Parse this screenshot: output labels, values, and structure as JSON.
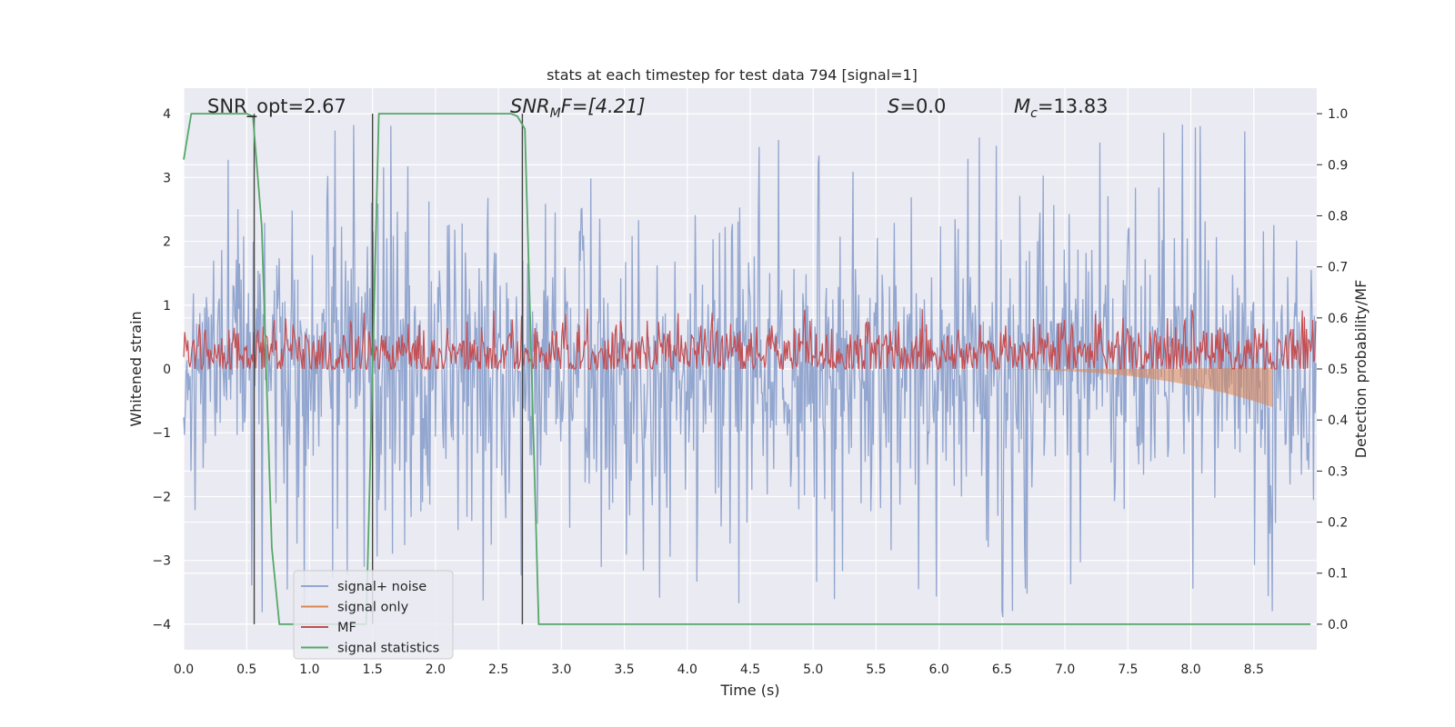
{
  "chart_data": {
    "type": "line",
    "title": "stats at each timestep for test data 794 [signal=1]",
    "xlabel": "Time (s)",
    "ylabel_left": "Whitened strain",
    "ylabel_right": "Detection probability/MF",
    "xlim": [
      0.0,
      9.0
    ],
    "ylim_left": [
      -4.4,
      4.4
    ],
    "ylim_right": [
      -0.05,
      1.05
    ],
    "xticks": [
      "0.0",
      "0.5",
      "1.0",
      "1.5",
      "2.0",
      "2.5",
      "3.0",
      "3.5",
      "4.0",
      "4.5",
      "5.0",
      "5.5",
      "6.0",
      "6.5",
      "7.0",
      "7.5",
      "8.0",
      "8.5"
    ],
    "yticks_left": [
      "4",
      "3",
      "2",
      "1",
      "0",
      "−1",
      "−2",
      "−3",
      "−4"
    ],
    "yticks_right": [
      "1.0",
      "0.9",
      "0.8",
      "0.7",
      "0.6",
      "0.5",
      "0.4",
      "0.3",
      "0.2",
      "0.1",
      "0.0"
    ],
    "grid": true,
    "legend_position": "lower-left",
    "annotations": {
      "snr_opt": "SNR_opt=2.67",
      "snr_mf_name": "SNR",
      "snr_mf_sub": "M",
      "snr_mf_rest": "F=[4.21]",
      "s_name": "S",
      "s_rest": "=0.0",
      "mc_name": "M",
      "mc_sub": "c",
      "mc_rest": "=13.83"
    },
    "vertical_lines_x": [
      0.56,
      1.5,
      2.69
    ],
    "colors": {
      "signal_noise": "#92a6cf",
      "signal_only": "#dd8452",
      "mf": "#c44e52",
      "stats": "#55a868",
      "vline": "#444444"
    },
    "series": [
      {
        "name": "signal+ noise",
        "axis": "left",
        "kind": "noise",
        "duration": 9.0,
        "envelope_low": -1.55,
        "envelope_high": 1.55,
        "spikes_max": 3.9,
        "spikes_min": -4.0
      },
      {
        "name": "signal only",
        "axis": "left",
        "kind": "chirp",
        "x_start": 6.0,
        "x_end": 8.65,
        "amplitude_end": -0.6
      },
      {
        "name": "MF",
        "axis": "right",
        "kind": "noise",
        "duration": 9.0,
        "baseline": 0.53,
        "spread": 0.05,
        "max": 0.62
      },
      {
        "name": "signal statistics",
        "axis": "right",
        "kind": "line",
        "x": [
          0.0,
          0.06,
          0.5,
          0.55,
          0.62,
          0.7,
          0.76,
          0.9,
          1.45,
          1.5,
          1.55,
          2.6,
          2.65,
          2.71,
          2.82,
          8.95
        ],
        "y": [
          0.91,
          1.0,
          1.0,
          0.995,
          0.78,
          0.15,
          0.0,
          0.0,
          0.0,
          0.5,
          1.0,
          1.0,
          0.995,
          0.97,
          0.0,
          0.0
        ]
      }
    ]
  }
}
